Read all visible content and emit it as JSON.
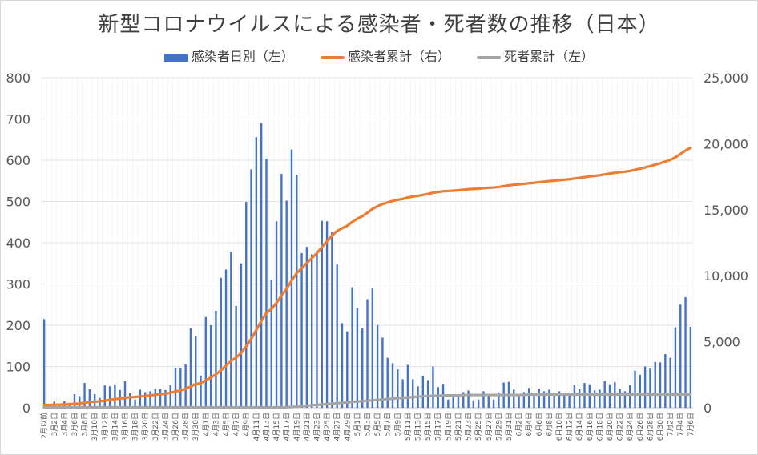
{
  "chart_data": {
    "type": "bar",
    "title": "新型コロナウイルスによる感染者・死者数の推移（日本）",
    "x": [
      "2月以前",
      "3月1日",
      "3月2日",
      "3月3日",
      "3月4日",
      "3月5日",
      "3月6日",
      "3月7日",
      "3月8日",
      "3月9日",
      "3月10日",
      "3月11日",
      "3月12日",
      "3月13日",
      "3月14日",
      "3月15日",
      "3月16日",
      "3月17日",
      "3月18日",
      "3月19日",
      "3月20日",
      "3月21日",
      "3月22日",
      "3月23日",
      "3月24日",
      "3月25日",
      "3月26日",
      "3月27日",
      "3月28日",
      "3月29日",
      "3月30日",
      "3月31日",
      "4月1日",
      "4月2日",
      "4月3日",
      "4月4日",
      "4月5日",
      "4月6日",
      "4月7日",
      "4月8日",
      "4月9日",
      "4月10日",
      "4月11日",
      "4月12日",
      "4月13日",
      "4月14日",
      "4月15日",
      "4月16日",
      "4月17日",
      "4月18日",
      "4月19日",
      "4月20日",
      "4月21日",
      "4月22日",
      "4月23日",
      "4月24日",
      "4月25日",
      "4月26日",
      "4月27日",
      "4月28日",
      "4月29日",
      "4月30日",
      "5月1日",
      "5月2日",
      "5月3日",
      "5月4日",
      "5月5日",
      "5月6日",
      "5月7日",
      "5月8日",
      "5月9日",
      "5月10日",
      "5月11日",
      "5月12日",
      "5月13日",
      "5月14日",
      "5月15日",
      "5月16日",
      "5月17日",
      "5月18日",
      "5月19日",
      "5月20日",
      "5月21日",
      "5月22日",
      "5月23日",
      "5月24日",
      "5月25日",
      "5月26日",
      "5月27日",
      "5月28日",
      "5月29日",
      "5月30日",
      "5月31日",
      "6月1日",
      "6月2日",
      "6月3日",
      "6月4日",
      "6月5日",
      "6月6日",
      "6月7日",
      "6月8日",
      "6月9日",
      "6月10日",
      "6月11日",
      "6月12日",
      "6月13日",
      "6月14日",
      "6月15日",
      "6月16日",
      "6月17日",
      "6月18日",
      "6月19日",
      "6月20日",
      "6月21日",
      "6月22日",
      "6月23日",
      "6月24日",
      "6月25日",
      "6月26日",
      "6月27日",
      "6月28日",
      "6月29日",
      "6月30日",
      "7月1日",
      "7月2日",
      "7月3日",
      "7月4日",
      "7月5日",
      "7月6日"
    ],
    "x_labeled_every": 2,
    "ylim_left": [
      0,
      800
    ],
    "yticks_left": [
      "0",
      "100",
      "200",
      "300",
      "400",
      "500",
      "600",
      "700",
      "800"
    ],
    "ylim_right": [
      0,
      25000
    ],
    "yticks_right": [
      "0",
      "5,000",
      "10,000",
      "15,000",
      "20,000",
      "25,000"
    ],
    "legend_position": "top",
    "series": [
      {
        "name": "感染者日別（左）",
        "type": "bar",
        "axis": "left",
        "color": "#4472c4",
        "values": [
          215,
          0,
          15,
          8,
          16,
          12,
          33,
          28,
          60,
          45,
          33,
          24,
          54,
          52,
          57,
          43,
          64,
          36,
          20,
          44,
          38,
          40,
          46,
          45,
          43,
          55,
          96,
          96,
          105,
          193,
          173,
          78,
          220,
          200,
          235,
          315,
          335,
          378,
          247,
          350,
          499,
          578,
          656,
          690,
          604,
          310,
          452,
          567,
          502,
          626,
          565,
          375,
          390,
          372,
          380,
          453,
          452,
          426,
          347,
          205,
          185,
          292,
          242,
          192,
          263,
          289,
          201,
          170,
          121,
          108,
          93,
          69,
          104,
          69,
          52,
          77,
          67,
          100,
          50,
          58,
          20,
          25,
          30,
          38,
          42,
          18,
          20,
          40,
          33,
          20,
          37,
          61,
          63,
          44,
          32,
          38,
          48,
          30,
          46,
          40,
          44,
          30,
          40,
          35,
          37,
          55,
          45,
          60,
          57,
          42,
          44,
          65,
          57,
          62,
          46,
          40,
          55,
          90,
          80,
          100,
          95,
          111,
          110,
          130,
          121,
          195,
          250,
          268,
          196
        ],
        "note": "approximate"
      },
      {
        "name": "感染者累計（右）",
        "type": "line",
        "axis": "right",
        "color": "#ed7d31",
        "values": [
          215,
          215,
          230,
          238,
          254,
          266,
          299,
          327,
          387,
          432,
          465,
          489,
          543,
          595,
          652,
          695,
          759,
          795,
          815,
          859,
          897,
          937,
          983,
          1028,
          1071,
          1126,
          1222,
          1318,
          1423,
          1616,
          1789,
          1867,
          2087,
          2287,
          2522,
          2837,
          3172,
          3550,
          3797,
          4147,
          4646,
          5224,
          5880,
          6570,
          7174,
          7484,
          7936,
          8503,
          9005,
          9631,
          10196,
          10571,
          10961,
          11333,
          11713,
          12166,
          12618,
          13044,
          13391,
          13596,
          13781,
          14073,
          14315,
          14507,
          14770,
          15059,
          15260,
          15430,
          15551,
          15659,
          15752,
          15821,
          15925,
          15994,
          16046,
          16123,
          16190,
          16290,
          16340,
          16398,
          16418,
          16443,
          16473,
          16511,
          16553,
          16571,
          16591,
          16631,
          16664,
          16684,
          16721,
          16782,
          16845,
          16889,
          16921,
          16959,
          17007,
          17037,
          17083,
          17123,
          17167,
          17197,
          17237,
          17272,
          17309,
          17364,
          17409,
          17469,
          17526,
          17568,
          17612,
          17677,
          17734,
          17796,
          17842,
          17882,
          17937,
          18027,
          18107,
          18207,
          18302,
          18413,
          18523,
          18653,
          18774,
          18969,
          19219,
          19487,
          19683
        ],
        "note": "approximate"
      },
      {
        "name": "死者累計（左）",
        "type": "line",
        "axis": "left",
        "color": "#a5a5a5",
        "values": [
          1,
          1,
          1,
          1,
          1,
          1,
          1,
          1,
          1,
          1,
          1,
          1,
          1,
          1,
          1,
          1,
          1,
          1,
          1,
          1,
          1,
          1,
          1,
          1,
          1,
          1,
          1,
          1,
          1,
          1,
          1,
          1,
          1,
          1,
          1,
          1,
          1,
          1,
          1,
          1,
          1,
          1,
          1,
          1,
          1,
          1,
          1,
          1,
          1,
          2,
          3,
          4,
          5,
          6,
          7,
          8,
          9,
          10,
          11,
          12,
          13,
          14,
          15,
          16,
          17,
          18,
          19,
          20,
          21,
          22,
          23,
          24,
          25,
          26,
          27,
          28,
          28,
          29,
          29,
          30,
          30,
          30,
          30,
          31,
          31,
          31,
          31,
          31,
          31,
          31,
          31,
          31,
          31,
          31,
          31,
          31,
          32,
          32,
          32,
          32,
          32,
          32,
          32,
          32,
          32,
          32,
          32,
          32,
          32,
          32,
          32,
          32,
          32,
          32,
          32,
          32,
          32,
          32,
          32,
          32,
          32,
          32,
          32,
          32,
          32,
          32,
          32,
          32,
          32
        ],
        "note": "approximate"
      }
    ]
  }
}
